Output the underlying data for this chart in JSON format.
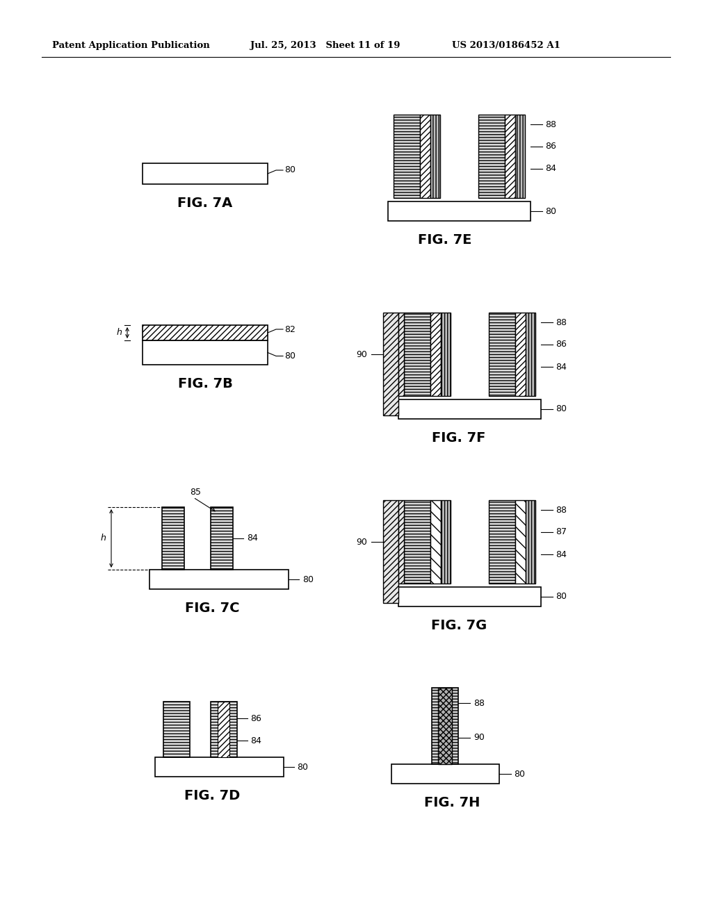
{
  "header_left": "Patent Application Publication",
  "header_mid": "Jul. 25, 2013   Sheet 11 of 19",
  "header_right": "US 2013/0186452 A1",
  "bg": "#ffffff"
}
